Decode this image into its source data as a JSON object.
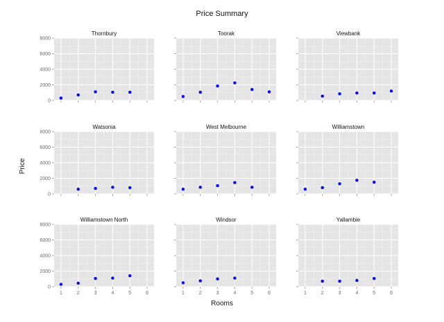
{
  "chart_data": {
    "type": "scatter",
    "title": "Price Summary",
    "xlabel": "Rooms",
    "ylabel": "Price",
    "xlim": [
      0.6,
      6.4
    ],
    "ylim": [
      0,
      8000
    ],
    "xticks": [
      1,
      2,
      3,
      4,
      5,
      6
    ],
    "yticks": [
      0,
      2000,
      4000,
      6000,
      8000
    ],
    "grid": true,
    "point_color": "#0000ff",
    "panel_background": "#e5e5e5",
    "facets": [
      {
        "name": "Thornbury",
        "points": [
          [
            1,
            300
          ],
          [
            2,
            700
          ],
          [
            3,
            1100
          ],
          [
            4,
            1050
          ],
          [
            5,
            1050
          ]
        ]
      },
      {
        "name": "Toorak",
        "points": [
          [
            1,
            500
          ],
          [
            2,
            1050
          ],
          [
            3,
            1850
          ],
          [
            4,
            2250
          ],
          [
            5,
            1400
          ],
          [
            6,
            1100
          ]
        ]
      },
      {
        "name": "Viewbank",
        "points": [
          [
            2,
            550
          ],
          [
            3,
            850
          ],
          [
            4,
            950
          ],
          [
            5,
            950
          ],
          [
            6,
            1200
          ]
        ]
      },
      {
        "name": "Watsonia",
        "points": [
          [
            2,
            600
          ],
          [
            3,
            700
          ],
          [
            4,
            850
          ],
          [
            5,
            800
          ]
        ]
      },
      {
        "name": "West Melbourne",
        "points": [
          [
            1,
            600
          ],
          [
            2,
            850
          ],
          [
            3,
            1050
          ],
          [
            4,
            1450
          ],
          [
            5,
            850
          ]
        ]
      },
      {
        "name": "Williamstown",
        "points": [
          [
            1,
            600
          ],
          [
            2,
            800
          ],
          [
            3,
            1300
          ],
          [
            4,
            1750
          ],
          [
            5,
            1500
          ]
        ]
      },
      {
        "name": "Williamstown North",
        "points": [
          [
            1,
            300
          ],
          [
            2,
            450
          ],
          [
            3,
            1050
          ],
          [
            4,
            1100
          ],
          [
            5,
            1400
          ]
        ]
      },
      {
        "name": "Windsor",
        "points": [
          [
            1,
            500
          ],
          [
            2,
            750
          ],
          [
            3,
            1000
          ],
          [
            4,
            1100
          ]
        ]
      },
      {
        "name": "Yallambie",
        "points": [
          [
            2,
            700
          ],
          [
            3,
            700
          ],
          [
            4,
            800
          ],
          [
            5,
            1050
          ]
        ]
      }
    ]
  }
}
